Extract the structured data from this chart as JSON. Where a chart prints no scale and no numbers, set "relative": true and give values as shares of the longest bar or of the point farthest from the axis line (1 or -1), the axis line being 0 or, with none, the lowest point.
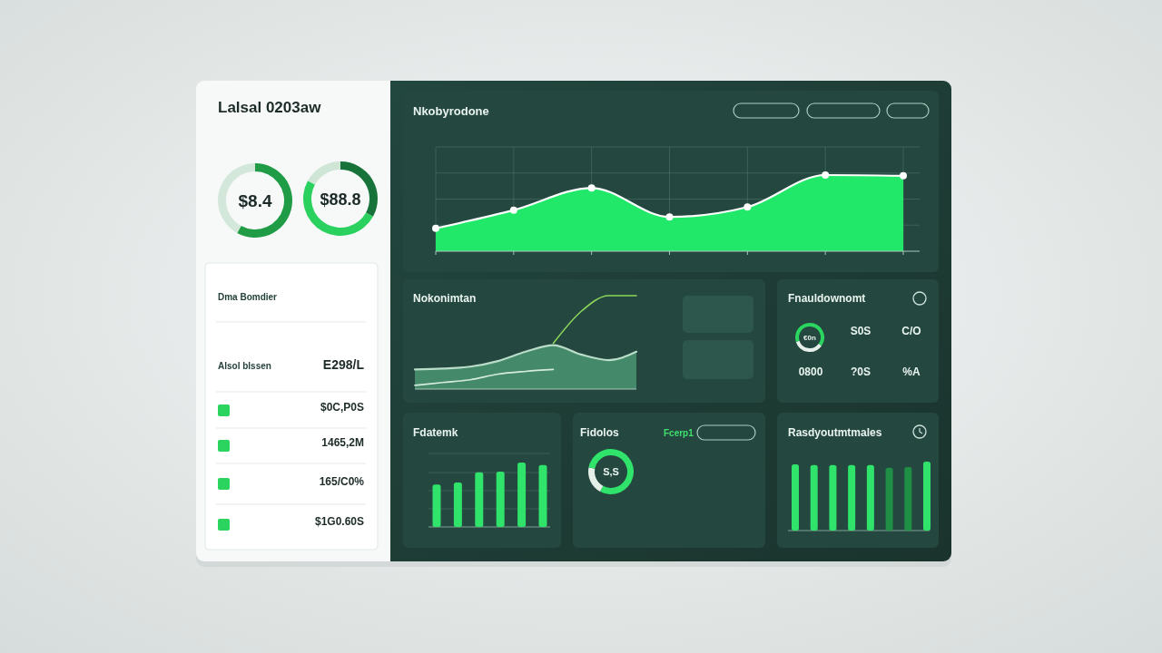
{
  "chart_data": [
    {
      "type": "donut",
      "title": "Lalsal 0203aw",
      "categories": [
        null,
        null
      ],
      "values": [
        58,
        42
      ],
      "colors": [
        "#1f9c45",
        "#d3e7da"
      ],
      "annotations": [
        "$8.4"
      ]
    },
    {
      "type": "donut",
      "categories": [
        null,
        null,
        null
      ],
      "values": [
        33,
        50,
        17
      ],
      "colors": [
        "#17733a",
        "#2ad15e",
        "#cfe5d6"
      ],
      "annotations": [
        "$88.8"
      ]
    },
    {
      "type": "other",
      "annotations": [
        "Dma Bomdier",
        "Alsol blssen",
        "E298/L",
        "$0C,P0S",
        "1465,2M",
        "165/C0%",
        "$1G0.60S"
      ]
    },
    {
      "type": "area",
      "title": "Nkobyrodone",
      "categories": [
        null,
        null,
        null,
        null,
        null,
        null,
        null
      ],
      "values": [
        0.3,
        0.54,
        0.83,
        0.45,
        0.58,
        1,
        0.99
      ],
      "color": "#22e86a",
      "relative": true,
      "marker": "circle",
      "grid": true
    },
    {
      "type": "line",
      "title": "Nokonimtan",
      "categories": [
        null,
        null,
        null,
        null,
        null,
        null,
        null,
        null,
        null
      ],
      "relative": true,
      "series": [
        {
          "type": "area",
          "color": "#4c9a74",
          "values": [
            0.21,
            0.22,
            0.24,
            0.3,
            0.4,
            0.47,
            0.37,
            0.31,
            0.4
          ]
        },
        {
          "type": "line",
          "color": "#8bd65a",
          "values": [
            null,
            null,
            null,
            null,
            null,
            0.49,
            0.83,
            1,
            1
          ]
        },
        {
          "type": "line",
          "color": "#d6ebe0",
          "values": [
            0.04,
            0.07,
            0.1,
            0.16,
            0.19,
            0.21,
            null,
            null,
            null
          ]
        }
      ]
    },
    {
      "type": "donut",
      "title": "Fnauldownomt",
      "categories": [
        null,
        null,
        null
      ],
      "values": [
        35,
        35,
        30
      ],
      "colors": [
        "#2bd660",
        "#e6efe9",
        "#2bd660"
      ],
      "annotations": [
        "€0n",
        "S0S",
        "C/O",
        "0800",
        "?0S",
        "%A"
      ]
    },
    {
      "type": "bar",
      "title": "Fdatemk",
      "categories": [
        null,
        null,
        null,
        null,
        null,
        null
      ],
      "values": [
        0.66,
        0.69,
        0.85,
        0.86,
        1,
        0.96
      ],
      "color": "#2fe36b",
      "relative": true,
      "grid": "y"
    },
    {
      "type": "donut",
      "title": "Fidolos",
      "categories": [
        null,
        null,
        null
      ],
      "values": [
        58,
        20,
        22
      ],
      "colors": [
        "#2fe36b",
        "#e4efe8",
        "#2fe36b"
      ],
      "annotations": [
        "S,S",
        "Fcerp1"
      ]
    },
    {
      "type": "bar",
      "title": "Rasdyoutmtmales",
      "categories": [
        null,
        null,
        null,
        null,
        null,
        null,
        null,
        null
      ],
      "values": [
        0.96,
        0.95,
        0.95,
        0.95,
        0.95,
        0.91,
        0.92,
        1
      ],
      "colors": [
        "#2fe36b",
        "#2fe36b",
        "#2fe36b",
        "#2fe36b",
        "#2fe36b",
        "#1f8f45",
        "#1f8f45",
        "#2fe36b"
      ],
      "relative": true
    }
  ]
}
